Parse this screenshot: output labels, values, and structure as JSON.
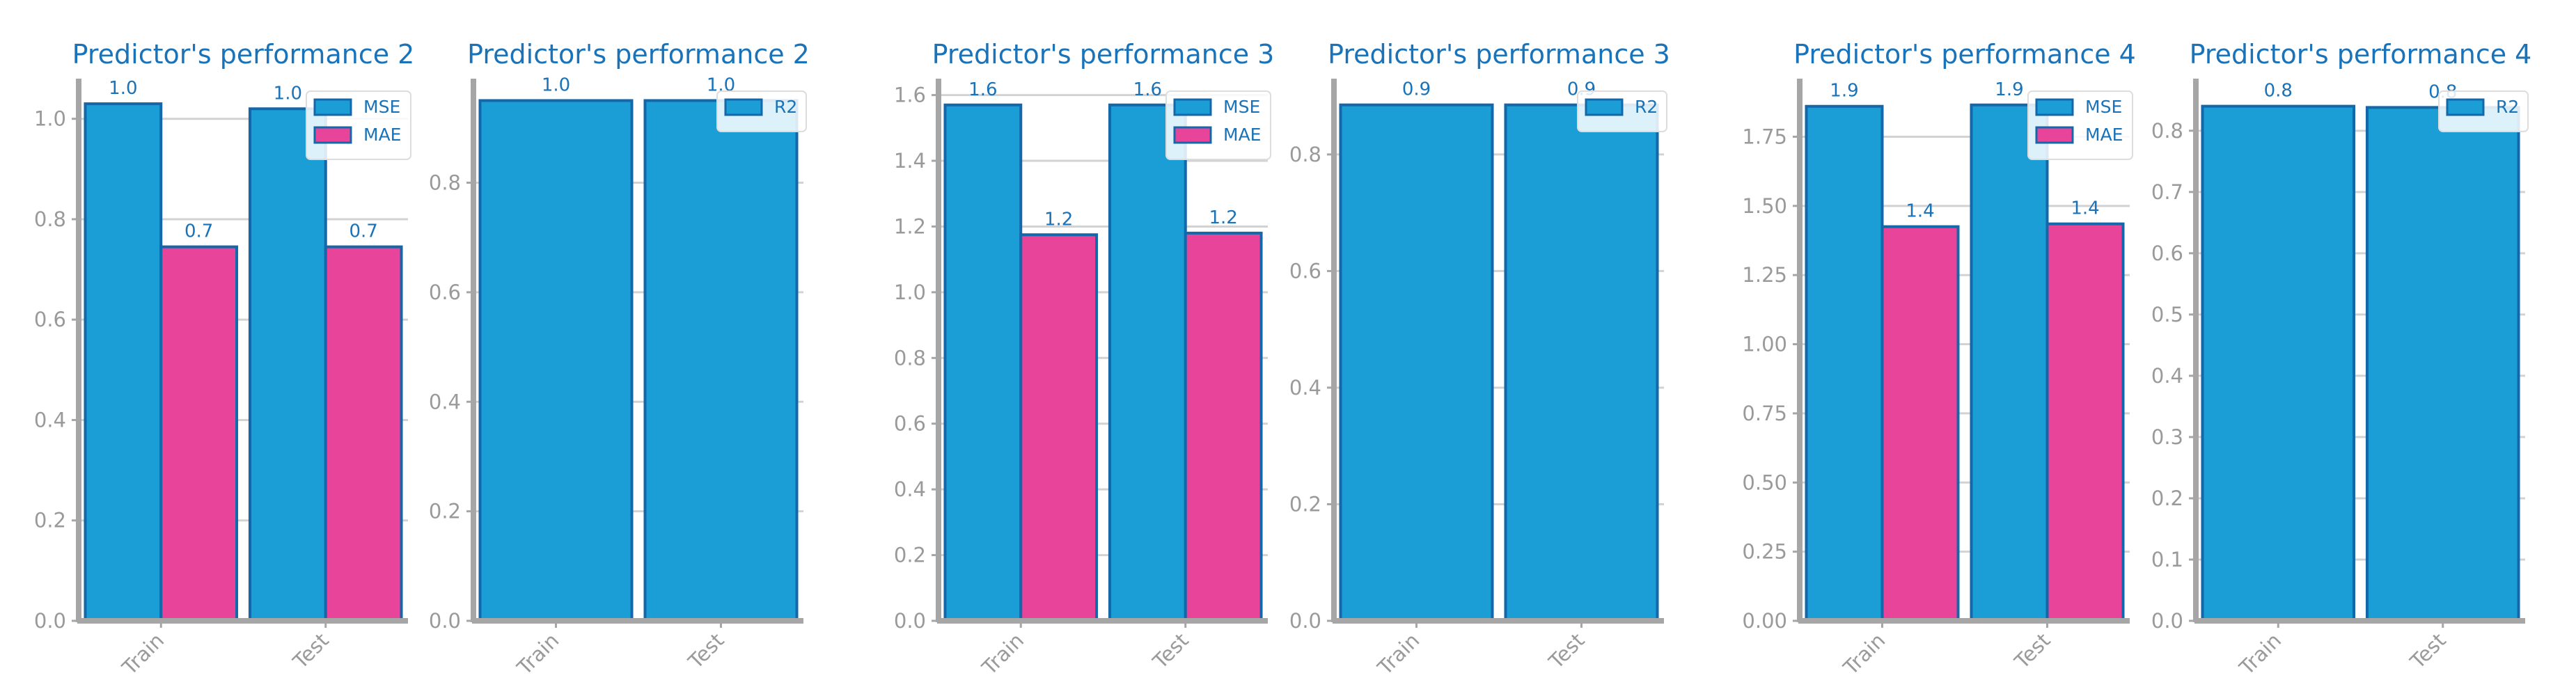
{
  "colors": {
    "title": "#1a73b8",
    "mse": "#1a9ed5",
    "mae": "#e8449a",
    "r2": "#1a9ed5",
    "bar_edge": "#1467a8",
    "axis": "#a6a6a6",
    "grid": "#d2d2d2",
    "tick_text": "#9a9a9a",
    "data_label": "#1a73b8"
  },
  "chart_data": [
    {
      "type": "bar",
      "title": "Predictor's performance 2",
      "categories": [
        "Train",
        "Test"
      ],
      "series": [
        {
          "name": "MSE",
          "values": [
            1.03,
            1.02
          ],
          "labels": [
            "1.0",
            "1.0"
          ]
        },
        {
          "name": "MAE",
          "values": [
            0.745,
            0.745
          ],
          "labels": [
            "0.7",
            "0.7"
          ]
        }
      ],
      "ylim": [
        0,
        1.08
      ],
      "yticks": [
        "0.0",
        "0.2",
        "0.4",
        "0.6",
        "0.8",
        "1.0"
      ],
      "ytick_values": [
        0,
        0.2,
        0.4,
        0.6,
        0.8,
        1.0
      ],
      "grid": true,
      "legend": "top-right"
    },
    {
      "type": "bar",
      "title": "Predictor's performance 2",
      "categories": [
        "Train",
        "Test"
      ],
      "series": [
        {
          "name": "R2",
          "values": [
            0.95,
            0.95
          ],
          "labels": [
            "1.0",
            "1.0"
          ]
        }
      ],
      "ylim": [
        0,
        0.99
      ],
      "yticks": [
        "0.0",
        "0.2",
        "0.4",
        "0.6",
        "0.8"
      ],
      "ytick_values": [
        0,
        0.2,
        0.4,
        0.6,
        0.8
      ],
      "grid": true,
      "legend": "top-right"
    },
    {
      "type": "bar",
      "title": "Predictor's performance 3",
      "categories": [
        "Train",
        "Test"
      ],
      "series": [
        {
          "name": "MSE",
          "values": [
            1.57,
            1.57
          ],
          "labels": [
            "1.6",
            "1.6"
          ]
        },
        {
          "name": "MAE",
          "values": [
            1.175,
            1.18
          ],
          "labels": [
            "1.2",
            "1.2"
          ]
        }
      ],
      "ylim": [
        0,
        1.65
      ],
      "yticks": [
        "0.0",
        "0.2",
        "0.4",
        "0.6",
        "0.8",
        "1.0",
        "1.2",
        "1.4",
        "1.6"
      ],
      "ytick_values": [
        0,
        0.2,
        0.4,
        0.6,
        0.8,
        1.0,
        1.2,
        1.4,
        1.6
      ],
      "grid": true,
      "legend": "top-right"
    },
    {
      "type": "bar",
      "title": "Predictor's performance 3",
      "categories": [
        "Train",
        "Test"
      ],
      "series": [
        {
          "name": "R2",
          "values": [
            0.885,
            0.885
          ],
          "labels": [
            "0.9",
            "0.9"
          ]
        }
      ],
      "ylim": [
        0,
        0.93
      ],
      "yticks": [
        "0.0",
        "0.2",
        "0.4",
        "0.6",
        "0.8"
      ],
      "ytick_values": [
        0,
        0.2,
        0.4,
        0.6,
        0.8
      ],
      "grid": true,
      "legend": "top-right"
    },
    {
      "type": "bar",
      "title": "Predictor's performance 4",
      "categories": [
        "Train",
        "Test"
      ],
      "series": [
        {
          "name": "MSE",
          "values": [
            1.86,
            1.865
          ],
          "labels": [
            "1.9",
            "1.9"
          ]
        },
        {
          "name": "MAE",
          "values": [
            1.425,
            1.435
          ],
          "labels": [
            "1.4",
            "1.4"
          ]
        }
      ],
      "ylim": [
        0,
        1.96
      ],
      "yticks": [
        "0.00",
        "0.25",
        "0.50",
        "0.75",
        "1.00",
        "1.25",
        "1.50",
        "1.75"
      ],
      "ytick_values": [
        0,
        0.25,
        0.5,
        0.75,
        1.0,
        1.25,
        1.5,
        1.75
      ],
      "grid": true,
      "legend": "top-right"
    },
    {
      "type": "bar",
      "title": "Predictor's performance 4",
      "categories": [
        "Train",
        "Test"
      ],
      "series": [
        {
          "name": "R2",
          "values": [
            0.84,
            0.838
          ],
          "labels": [
            "0.8",
            "0.8"
          ]
        }
      ],
      "ylim": [
        0,
        0.885
      ],
      "yticks": [
        "0.0",
        "0.1",
        "0.2",
        "0.3",
        "0.4",
        "0.5",
        "0.6",
        "0.7",
        "0.8"
      ],
      "ytick_values": [
        0,
        0.1,
        0.2,
        0.3,
        0.4,
        0.5,
        0.6,
        0.7,
        0.8
      ],
      "grid": true,
      "legend": "top-right"
    }
  ]
}
